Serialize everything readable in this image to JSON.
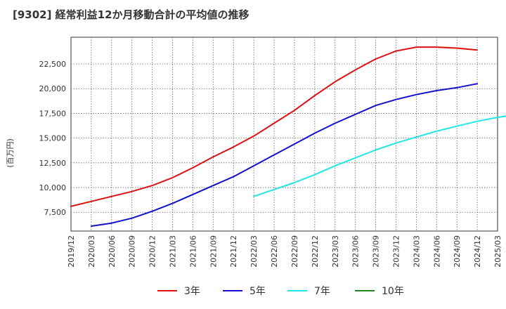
{
  "chart_data": {
    "type": "line",
    "title": "[9302]  経常利益12か月移動合計の平均値の推移",
    "ylabel": "(百万円)",
    "xlabel": "",
    "ylim": [
      5600,
      25200
    ],
    "yticks": [
      7500,
      10000,
      12500,
      15000,
      17500,
      20000,
      22500
    ],
    "ytick_labels": [
      "7,500",
      "10,000",
      "12,500",
      "15,000",
      "17,500",
      "20,000",
      "22,500"
    ],
    "x_tick_labels": [
      "2019/12",
      "2020/03",
      "2020/06",
      "2020/09",
      "2020/12",
      "2021/03",
      "2021/06",
      "2021/09",
      "2021/12",
      "2022/03",
      "2022/06",
      "2022/09",
      "2022/12",
      "2023/03",
      "2023/06",
      "2023/09",
      "2023/12",
      "2024/03",
      "2024/06",
      "2024/09",
      "2024/12",
      "2025/03"
    ],
    "grid": true,
    "legend_position": "bottom",
    "series": [
      {
        "name": "3年",
        "color": "#dd1111",
        "start_index": 0,
        "values": [
          8100,
          8600,
          9100,
          9600,
          10200,
          11000,
          12000,
          13100,
          14100,
          15200,
          16500,
          17800,
          19300,
          20700,
          21900,
          23000,
          23800,
          24200,
          24200,
          24100,
          23900
        ]
      },
      {
        "name": "5年",
        "color": "#1111cc",
        "start_index": 1,
        "values": [
          6100,
          6400,
          6900,
          7600,
          8400,
          9300,
          10200,
          11100,
          12200,
          13300,
          14400,
          15500,
          16500,
          17400,
          18300,
          18900,
          19400,
          19800,
          20100,
          20500
        ]
      },
      {
        "name": "7年",
        "color": "#22e5e5",
        "start_index": 9,
        "values": [
          9100,
          9800,
          10500,
          11300,
          12200,
          13000,
          13800,
          14500,
          15100,
          15700,
          16200,
          16700,
          17100,
          17400
        ]
      },
      {
        "name": "10年",
        "color": "#228822",
        "start_index": 0,
        "values": []
      }
    ]
  }
}
